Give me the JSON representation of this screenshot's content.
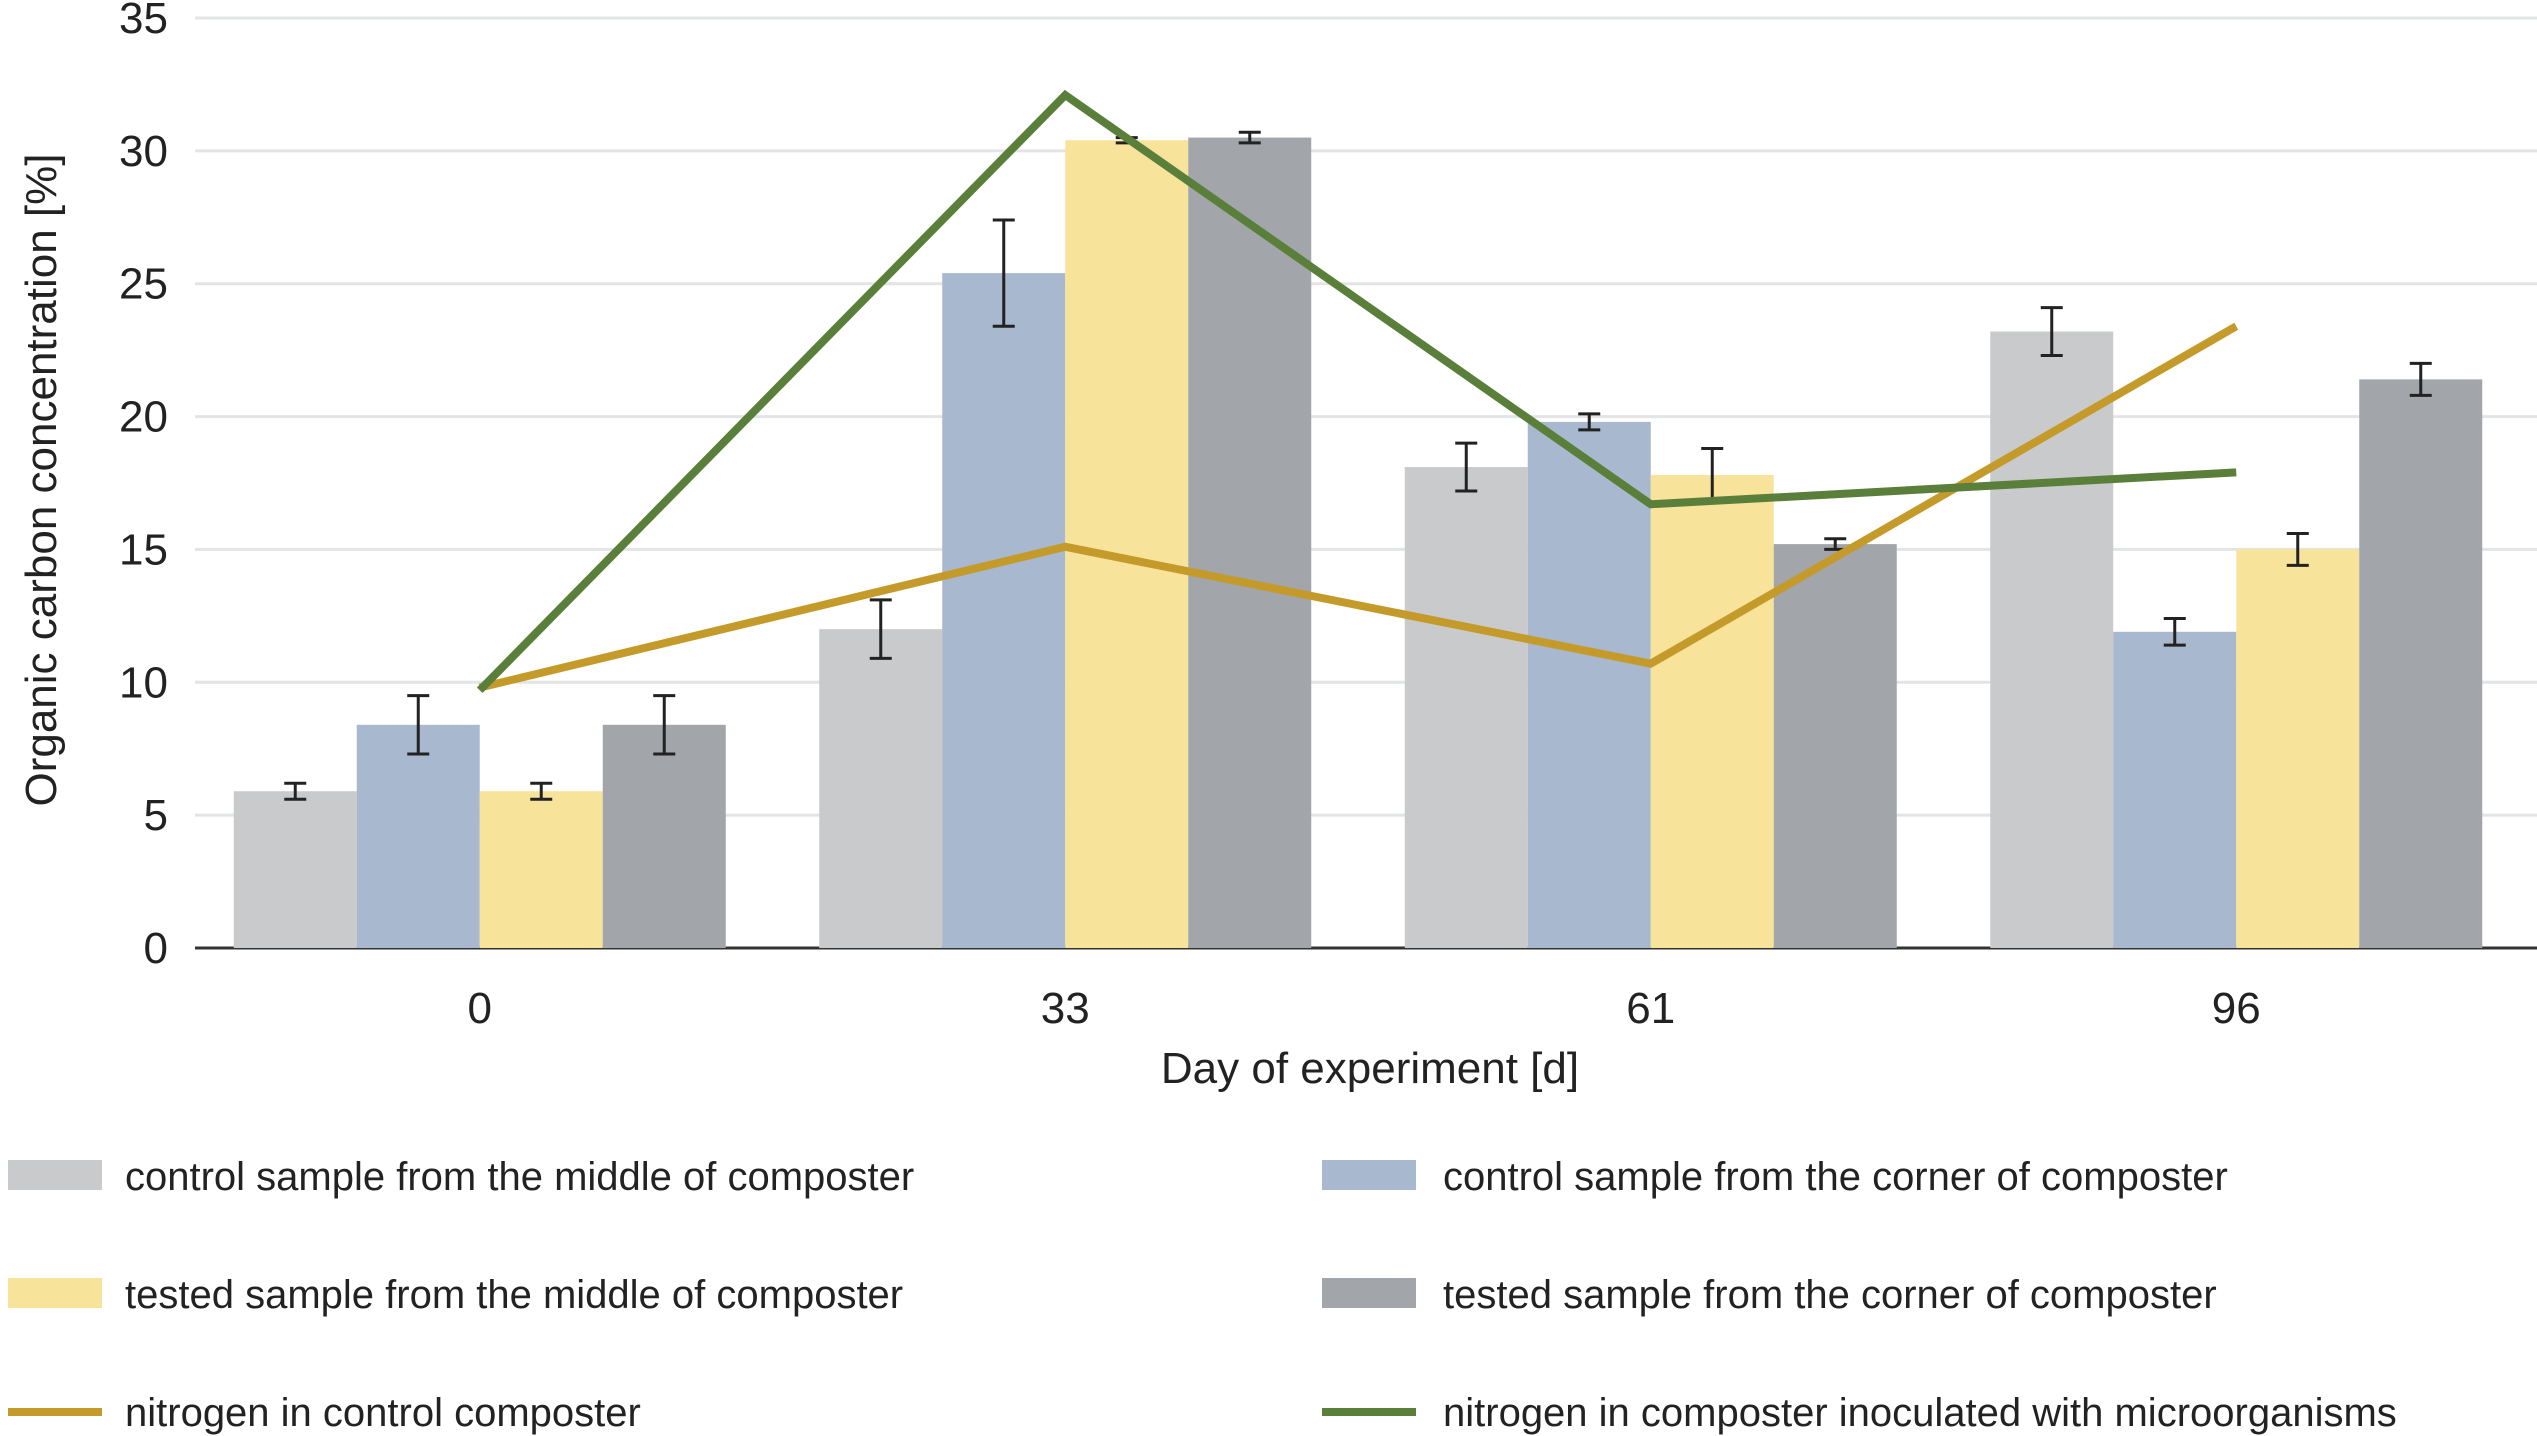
{
  "chart_data": {
    "type": "bar",
    "xlabel": "Day of experiment [d]",
    "ylabel": "Organic carbon concentration [%]",
    "ylim": [
      0,
      35
    ],
    "yticks": [
      0,
      5,
      10,
      15,
      20,
      25,
      30,
      35
    ],
    "grid": true,
    "legend_placement": "bottom",
    "categories": [
      "0",
      "33",
      "61",
      "96"
    ],
    "series": [
      {
        "name": "control sample from the middle of composter",
        "kind": "bar",
        "color": "#c9cacc",
        "values": [
          5.9,
          12.0,
          18.1,
          23.2
        ],
        "errors": [
          0.3,
          1.1,
          0.9,
          0.9
        ]
      },
      {
        "name": "control sample from the corner of composter",
        "kind": "bar",
        "color": "#a8b8cf",
        "values": [
          8.4,
          25.4,
          19.8,
          11.9
        ],
        "errors": [
          1.1,
          2.0,
          0.3,
          0.5
        ]
      },
      {
        "name": "tested sample from the middle of composter",
        "kind": "bar",
        "color": "#f8e39a",
        "values": [
          5.9,
          30.4,
          17.8,
          15.0
        ],
        "errors": [
          0.3,
          0.1,
          1.0,
          0.6
        ]
      },
      {
        "name": "tested sample from the corner of composter",
        "kind": "bar",
        "color": "#a2a5a9",
        "values": [
          8.4,
          30.5,
          15.2,
          21.4
        ],
        "errors": [
          1.1,
          0.2,
          0.2,
          0.6
        ]
      },
      {
        "name": "nitrogen in control composter",
        "kind": "line",
        "color": "#c49b2a",
        "values": [
          9.8,
          15.1,
          10.7,
          23.4
        ]
      },
      {
        "name": "nitrogen in composter inoculated with microorganisms",
        "kind": "line",
        "color": "#5a7f3a",
        "values": [
          9.7,
          32.1,
          16.7,
          17.9
        ]
      }
    ]
  }
}
